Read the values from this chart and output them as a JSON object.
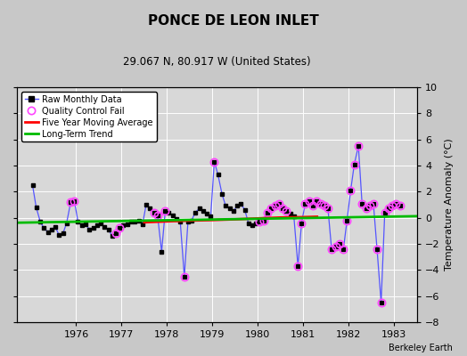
{
  "title": "PONCE DE LEON INLET",
  "subtitle": "29.067 N, 80.917 W (United States)",
  "ylabel": "Temperature Anomaly (°C)",
  "credit": "Berkeley Earth",
  "ylim": [
    -8,
    10
  ],
  "xlim": [
    1974.7,
    1983.5
  ],
  "xticks": [
    1976,
    1977,
    1978,
    1979,
    1980,
    1981,
    1982,
    1983
  ],
  "yticks": [
    -8,
    -6,
    -4,
    -2,
    0,
    2,
    4,
    6,
    8,
    10
  ],
  "bg_color": "#c8c8c8",
  "plot_bg_color": "#d8d8d8",
  "raw_color": "#5555ff",
  "raw_marker_color": "#000000",
  "qc_fail_color": "#ff44ff",
  "moving_avg_color": "#ff0000",
  "trend_color": "#00bb00",
  "raw_x": [
    1975.04,
    1975.12,
    1975.21,
    1975.29,
    1975.38,
    1975.46,
    1975.54,
    1975.62,
    1975.71,
    1975.79,
    1975.88,
    1975.96,
    1976.04,
    1976.12,
    1976.21,
    1976.29,
    1976.38,
    1976.46,
    1976.54,
    1976.62,
    1976.71,
    1976.79,
    1976.88,
    1976.96,
    1977.04,
    1977.12,
    1977.21,
    1977.29,
    1977.38,
    1977.46,
    1977.54,
    1977.62,
    1977.71,
    1977.79,
    1977.88,
    1977.96,
    1978.04,
    1978.12,
    1978.21,
    1978.29,
    1978.38,
    1978.46,
    1978.54,
    1978.62,
    1978.71,
    1978.79,
    1978.88,
    1978.96,
    1979.04,
    1979.12,
    1979.21,
    1979.29,
    1979.38,
    1979.46,
    1979.54,
    1979.62,
    1979.71,
    1979.79,
    1979.88,
    1979.96,
    1980.04,
    1980.12,
    1980.21,
    1980.29,
    1980.38,
    1980.46,
    1980.54,
    1980.62,
    1980.71,
    1980.79,
    1980.88,
    1980.96,
    1981.04,
    1981.12,
    1981.21,
    1981.29,
    1981.38,
    1981.46,
    1981.54,
    1981.62,
    1981.71,
    1981.79,
    1981.88,
    1981.96,
    1982.04,
    1982.12,
    1982.21,
    1982.29,
    1982.38,
    1982.46,
    1982.54,
    1982.62,
    1982.71,
    1982.79,
    1982.88,
    1982.96,
    1983.04,
    1983.12
  ],
  "raw_y": [
    2.5,
    0.8,
    -0.3,
    -0.8,
    -1.1,
    -0.9,
    -0.7,
    -1.3,
    -1.2,
    -0.4,
    1.2,
    1.3,
    -0.3,
    -0.6,
    -0.5,
    -0.9,
    -0.8,
    -0.6,
    -0.4,
    -0.7,
    -0.9,
    -1.4,
    -1.2,
    -0.8,
    -0.6,
    -0.5,
    -0.3,
    -0.3,
    -0.2,
    -0.5,
    1.0,
    0.7,
    0.4,
    0.2,
    -2.6,
    0.5,
    0.4,
    0.2,
    -0.1,
    -0.3,
    -4.5,
    -0.3,
    -0.2,
    0.4,
    0.7,
    0.5,
    0.3,
    0.1,
    4.3,
    3.3,
    1.8,
    0.9,
    0.7,
    0.5,
    0.9,
    1.1,
    0.6,
    -0.4,
    -0.6,
    -0.4,
    -0.3,
    -0.2,
    0.4,
    0.7,
    0.9,
    1.1,
    0.7,
    0.5,
    0.3,
    0.1,
    -3.7,
    -0.4,
    1.1,
    1.3,
    0.9,
    1.3,
    1.1,
    0.9,
    0.7,
    -2.4,
    -2.2,
    -2.0,
    -2.4,
    -0.2,
    2.1,
    4.1,
    5.5,
    1.1,
    0.7,
    0.9,
    1.1,
    -2.4,
    -6.5,
    0.4,
    0.7,
    0.9,
    1.1,
    0.9
  ],
  "qc_fail_x": [
    1975.88,
    1975.96,
    1976.88,
    1976.96,
    1977.71,
    1977.79,
    1977.96,
    1978.38,
    1979.04,
    1980.04,
    1980.12,
    1980.21,
    1980.29,
    1980.38,
    1980.46,
    1980.54,
    1980.62,
    1980.88,
    1980.96,
    1981.04,
    1981.12,
    1981.21,
    1981.29,
    1981.38,
    1981.46,
    1981.54,
    1981.62,
    1981.71,
    1981.79,
    1981.88,
    1981.96,
    1982.04,
    1982.12,
    1982.21,
    1982.29,
    1982.38,
    1982.46,
    1982.54,
    1982.62,
    1982.71,
    1982.79,
    1982.88,
    1982.96,
    1983.04,
    1983.12
  ],
  "qc_fail_y": [
    1.2,
    1.3,
    -1.2,
    -0.8,
    0.4,
    0.2,
    0.5,
    -4.5,
    4.3,
    -0.3,
    -0.2,
    0.4,
    0.7,
    0.9,
    1.1,
    0.7,
    0.5,
    -3.7,
    -0.4,
    1.1,
    1.3,
    0.9,
    1.3,
    1.1,
    0.9,
    0.7,
    -2.4,
    -2.2,
    -2.0,
    -2.4,
    -0.2,
    2.1,
    4.1,
    5.5,
    1.1,
    0.7,
    0.9,
    1.1,
    -2.4,
    -6.5,
    0.4,
    0.7,
    0.9,
    1.1,
    0.9
  ],
  "moving_avg_x": [
    1977.5,
    1978.0,
    1978.5,
    1979.0,
    1979.5,
    1980.0,
    1980.5,
    1981.0,
    1981.3
  ],
  "moving_avg_y": [
    -0.35,
    -0.28,
    -0.22,
    -0.18,
    -0.12,
    -0.05,
    0.02,
    0.05,
    0.08
  ],
  "trend_x": [
    1974.7,
    1983.5
  ],
  "trend_y": [
    -0.38,
    0.12
  ]
}
